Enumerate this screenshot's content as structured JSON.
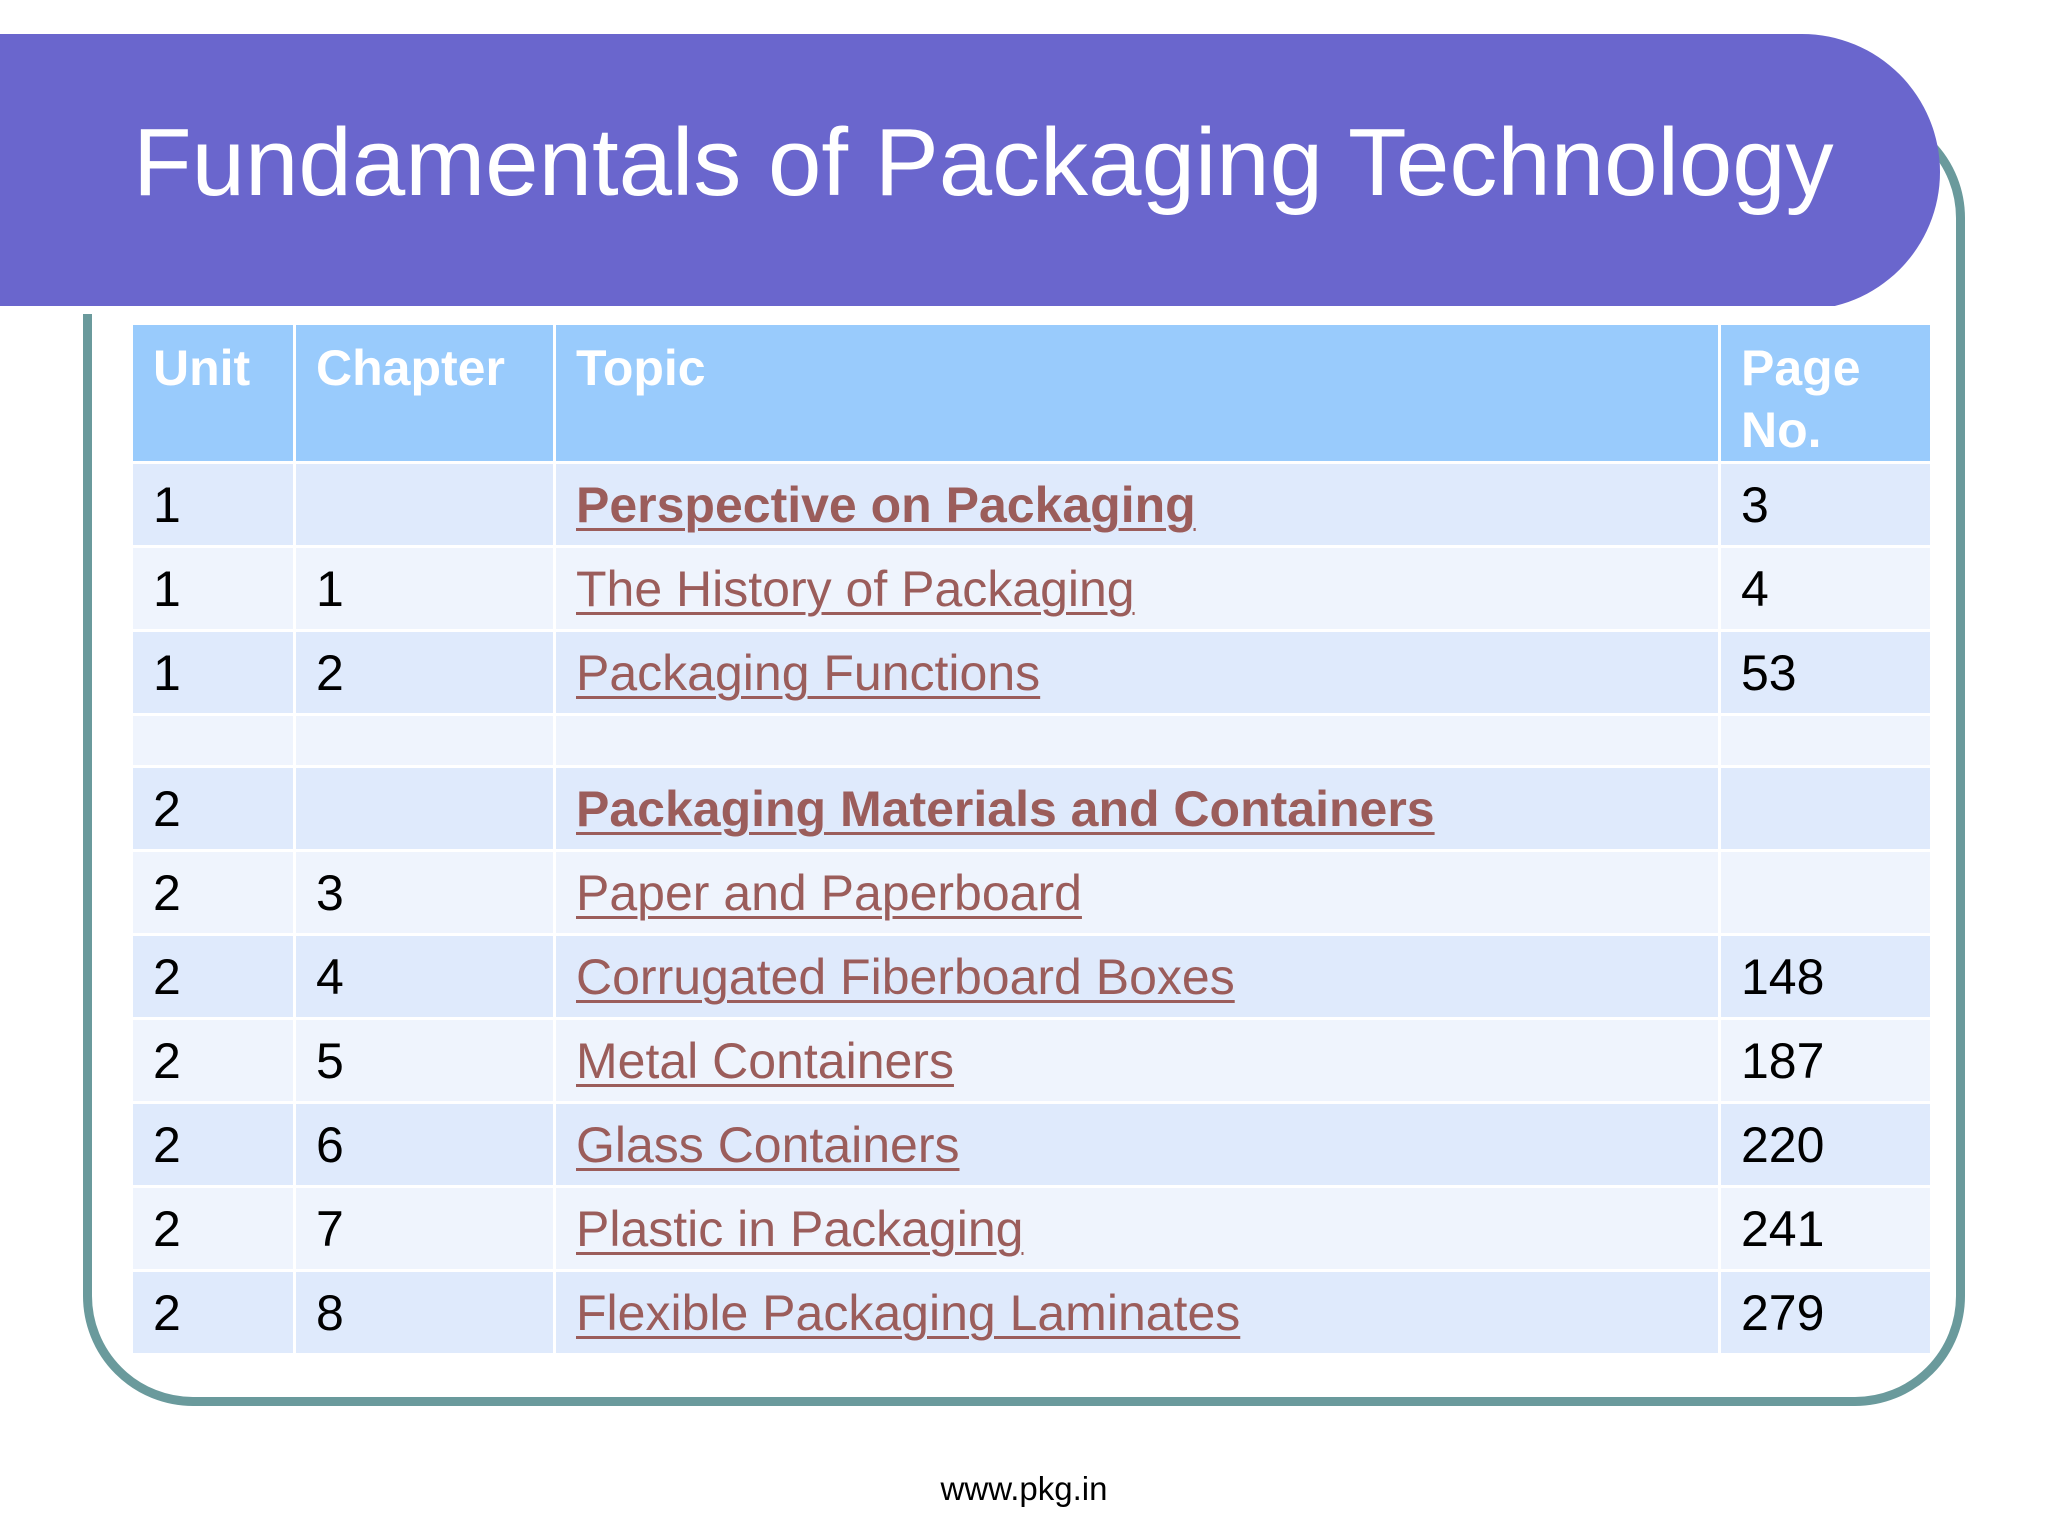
{
  "slide": {
    "title": "Fundamentals of Packaging Technology",
    "footer": "www.pkg.in"
  },
  "table": {
    "headers": {
      "unit": "Unit",
      "chapter": "Chapter",
      "topic": "Topic",
      "page": "Page No."
    },
    "rows": [
      {
        "unit": "1",
        "chapter": "",
        "topic": "Perspective on Packaging",
        "page": "3"
      },
      {
        "unit": "1",
        "chapter": "1",
        "topic": "The History of Packaging",
        "page": "4"
      },
      {
        "unit": "1",
        "chapter": "2",
        "topic": "Packaging Functions",
        "page": "53"
      },
      {
        "unit": "",
        "chapter": "",
        "topic": "",
        "page": ""
      },
      {
        "unit": "2",
        "chapter": "",
        "topic": "Packaging Materials and Containers",
        "page": ""
      },
      {
        "unit": "2",
        "chapter": "3",
        "topic": "Paper and Paperboard",
        "page": ""
      },
      {
        "unit": "2",
        "chapter": "4",
        "topic": "Corrugated Fiberboard Boxes",
        "page": "148"
      },
      {
        "unit": "2",
        "chapter": "5",
        "topic": "Metal Containers",
        "page": "187"
      },
      {
        "unit": "2",
        "chapter": "6",
        "topic": "Glass Containers",
        "page": "220"
      },
      {
        "unit": "2",
        "chapter": "7",
        "topic": "Plastic in Packaging",
        "page": "241"
      },
      {
        "unit": "2",
        "chapter": "8",
        "topic": "Flexible Packaging Laminates",
        "page": "279"
      }
    ]
  },
  "colors": {
    "title_banner": "#6a66cd",
    "frame_border": "#6a9a9c",
    "header_fill": "#99cbfc",
    "row_fill_a": "#dfeafc",
    "row_fill_b": "#eff4fd",
    "link_text": "#9b5d5b"
  }
}
